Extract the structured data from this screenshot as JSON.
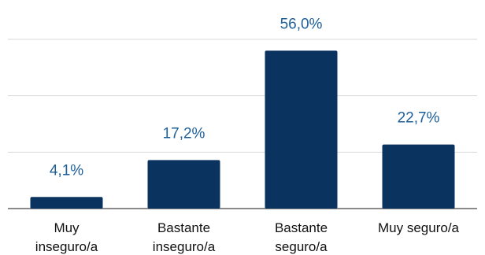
{
  "chart_data": {
    "type": "bar",
    "categories": [
      [
        "Muy",
        "inseguro/a"
      ],
      [
        "Bastante",
        "inseguro/a"
      ],
      [
        "Bastante",
        "seguro/a"
      ],
      [
        "Muy seguro/a"
      ]
    ],
    "values": [
      4.1,
      17.2,
      56.0,
      22.7
    ],
    "data_labels": [
      "4,1%",
      "17,2%",
      "56,0%",
      "22,7%"
    ],
    "ylim": [
      0,
      60
    ],
    "grid": true,
    "colors": {
      "bar": "#0b3360",
      "label": "#1e5f9a",
      "category": "#111111",
      "grid": "#d9d9d9",
      "axis": "#444444"
    }
  }
}
